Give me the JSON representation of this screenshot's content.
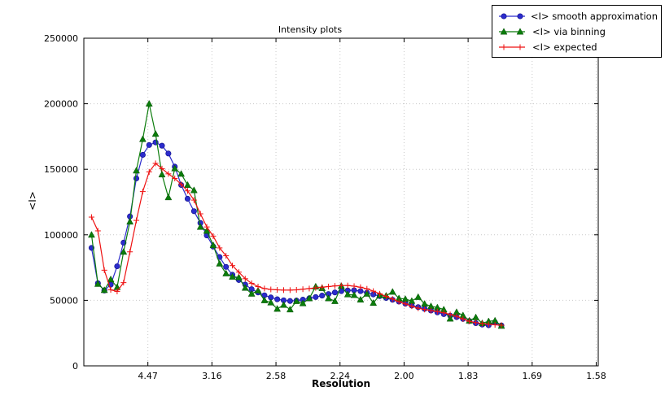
{
  "title": "Intensity plots",
  "axes": {
    "x_label": "Resolution",
    "y_label": "<I>",
    "x_range": [
      0,
      0.4016
    ],
    "y_range": [
      0,
      250000
    ],
    "grid_color": "#c9c9c9",
    "x_ticks": [
      {
        "label": "4.47",
        "pos": 0.05
      },
      {
        "label": "3.16",
        "pos": 0.1
      },
      {
        "label": "2.58",
        "pos": 0.15
      },
      {
        "label": "2.24",
        "pos": 0.2
      },
      {
        "label": "2.00",
        "pos": 0.25
      },
      {
        "label": "1.83",
        "pos": 0.3
      },
      {
        "label": "1.69",
        "pos": 0.35
      },
      {
        "label": "1.58",
        "pos": 0.4
      }
    ],
    "y_ticks": [
      {
        "label": "0",
        "value": 0
      },
      {
        "label": "50000",
        "value": 50000
      },
      {
        "label": "100000",
        "value": 100000
      },
      {
        "label": "150000",
        "value": 150000
      },
      {
        "label": "200000",
        "value": 200000
      },
      {
        "label": "250000",
        "value": 250000
      }
    ]
  },
  "chart_data": {
    "type": "line",
    "title": "Intensity plots",
    "xlabel": "Resolution",
    "ylabel": "<I>",
    "ylim": [
      0,
      250000
    ],
    "x_axis_note": "x values are 1/d^2; tick labels show resolution d",
    "grid": "dotted",
    "legend_position": "top-right",
    "x": [
      0.006,
      0.011,
      0.016,
      0.021,
      0.026,
      0.031,
      0.036,
      0.041,
      0.046,
      0.051,
      0.056,
      0.061,
      0.066,
      0.071,
      0.076,
      0.081,
      0.086,
      0.091,
      0.096,
      0.101,
      0.106,
      0.111,
      0.116,
      0.121,
      0.126,
      0.131,
      0.136,
      0.141,
      0.146,
      0.151,
      0.156,
      0.161,
      0.166,
      0.171,
      0.176,
      0.181,
      0.186,
      0.191,
      0.196,
      0.201,
      0.206,
      0.211,
      0.216,
      0.221,
      0.226,
      0.231,
      0.236,
      0.241,
      0.246,
      0.251,
      0.256,
      0.261,
      0.266,
      0.271,
      0.276,
      0.281,
      0.286,
      0.291,
      0.296,
      0.301,
      0.306,
      0.311,
      0.316,
      0.321,
      0.326
    ],
    "series": [
      {
        "name": "<I> smooth approximation",
        "marker": "circle",
        "color": "#2b2bcd",
        "edge": "#15158e",
        "values": [
          90000,
          63000,
          57500,
          62000,
          76000,
          94000,
          114000,
          143000,
          161000,
          168500,
          170500,
          168000,
          162000,
          152000,
          138000,
          127500,
          118000,
          109000,
          99500,
          91000,
          83000,
          75500,
          69500,
          65500,
          62000,
          58500,
          56000,
          53800,
          52200,
          50800,
          50000,
          49500,
          49800,
          50500,
          51500,
          52500,
          53600,
          54800,
          56000,
          57000,
          57500,
          57700,
          57000,
          55800,
          54500,
          53200,
          51800,
          50400,
          49000,
          47500,
          46000,
          44800,
          43500,
          42200,
          40800,
          39500,
          38300,
          37200,
          35800,
          34200,
          32600,
          31500,
          31000,
          33200,
          30800
        ]
      },
      {
        "name": "<I> via binning",
        "marker": "triangle",
        "color": "#0b7c0b",
        "edge": "#065006",
        "values": [
          100000,
          62500,
          57800,
          66000,
          60000,
          87000,
          110000,
          149000,
          173000,
          200000,
          177000,
          146000,
          128600,
          150600,
          146500,
          138000,
          134000,
          106000,
          103000,
          92000,
          78000,
          70500,
          68000,
          67500,
          59500,
          55000,
          57500,
          50000,
          48300,
          43500,
          46500,
          43000,
          49400,
          47700,
          51500,
          60500,
          59300,
          51500,
          49400,
          61000,
          54500,
          54000,
          50500,
          55000,
          48000,
          54000,
          53500,
          56500,
          51500,
          51000,
          49500,
          52500,
          47300,
          45500,
          44500,
          43000,
          36000,
          41000,
          38500,
          34500,
          37000,
          32500,
          34000,
          34500,
          30500
        ]
      },
      {
        "name": "<I> expected",
        "marker": "plus",
        "color": "#ee1111",
        "edge": "#ee1111",
        "values": [
          113500,
          103000,
          73000,
          58000,
          56800,
          63500,
          87000,
          111000,
          133000,
          148000,
          154500,
          150500,
          146500,
          143000,
          138500,
          133500,
          126500,
          116000,
          106000,
          99000,
          90000,
          84000,
          76500,
          71500,
          66500,
          63000,
          60500,
          59000,
          58300,
          58000,
          57800,
          57800,
          58000,
          58500,
          59000,
          59500,
          60000,
          60500,
          61000,
          61300,
          61300,
          60800,
          60000,
          58800,
          57000,
          55000,
          53000,
          51000,
          49000,
          47300,
          45500,
          44000,
          43000,
          42200,
          41400,
          40500,
          39200,
          37800,
          35800,
          34000,
          33000,
          32300,
          31700,
          31300,
          31000
        ]
      }
    ]
  }
}
